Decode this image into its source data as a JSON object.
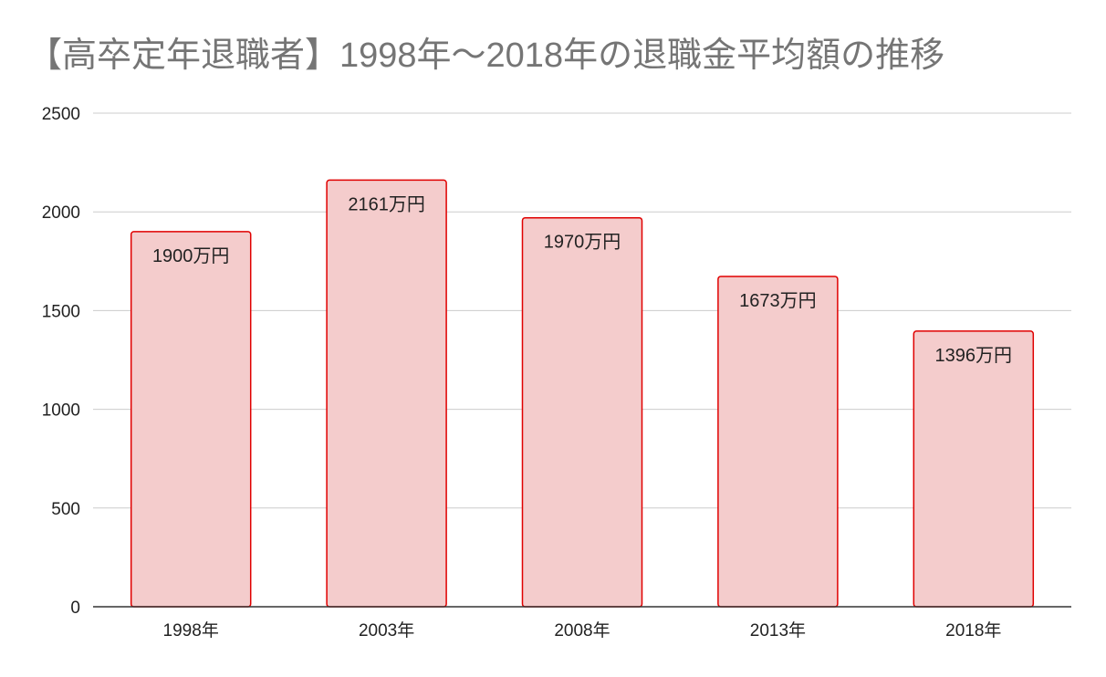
{
  "chart_data": {
    "type": "bar",
    "title": "【高卒定年退職者】1998年〜2018年の退職金平均額の推移",
    "xlabel": "",
    "ylabel": "",
    "categories": [
      "1998年",
      "2003年",
      "2008年",
      "2013年",
      "2018年"
    ],
    "values": [
      1900,
      2161,
      1970,
      1673,
      1396
    ],
    "data_labels": [
      "1900万円",
      "2161万円",
      "1970万円",
      "1673万円",
      "1396万円"
    ],
    "yticks": [
      "0",
      "500",
      "1000",
      "1500",
      "2000",
      "2500"
    ],
    "ylim": [
      0,
      2500
    ],
    "grid": true,
    "legend": "none",
    "colors": {
      "bar_fill": "#f4cccc",
      "bar_stroke": "#e00000",
      "grid": "#cccccc",
      "axis": "#333333",
      "title": "#757575"
    }
  }
}
